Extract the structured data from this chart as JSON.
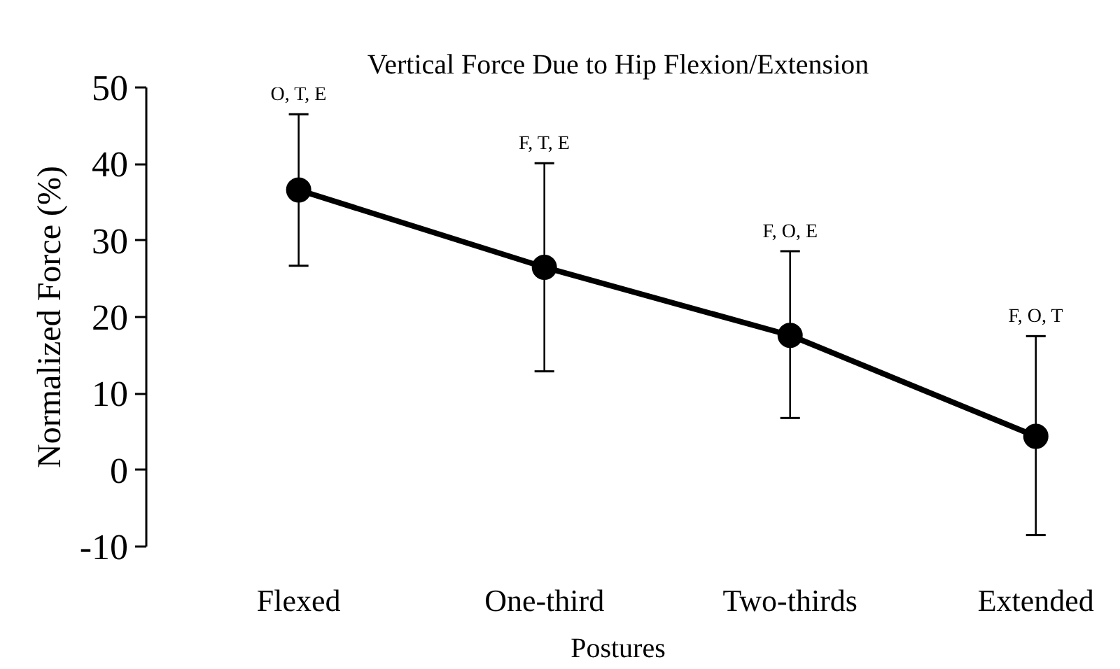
{
  "chart_data": {
    "type": "line",
    "title": "Vertical Force Due to Hip Flexion/Extension",
    "xlabel": "Postures",
    "ylabel": "Normalized Force (%)",
    "categories": [
      "Flexed",
      "One-third",
      "Two-thirds",
      "Extended"
    ],
    "series": [
      {
        "color": "#000000",
        "values": [
          36.6,
          26.5,
          17.6,
          4.4
        ],
        "errors": [
          [
            26.7,
            46.5
          ],
          [
            12.9,
            40.1
          ],
          [
            6.8,
            28.6
          ],
          [
            -8.5,
            17.5
          ]
        ]
      }
    ],
    "ylim": [
      -10,
      50
    ],
    "yticks": [
      -10,
      0,
      10,
      20,
      30,
      40,
      50
    ],
    "grid": false,
    "marker": "circle",
    "line_style": "solid",
    "annotations": [
      {
        "text": "O, T, E",
        "x": "Flexed",
        "y": 46.5
      },
      {
        "text": "F, T, E",
        "x": "One-third",
        "y": 40.1
      },
      {
        "text": "F, O, E",
        "x": "Two-thirds",
        "y": 28.6
      },
      {
        "text": "F, O, T",
        "x": "Extended",
        "y": 17.5
      }
    ]
  }
}
